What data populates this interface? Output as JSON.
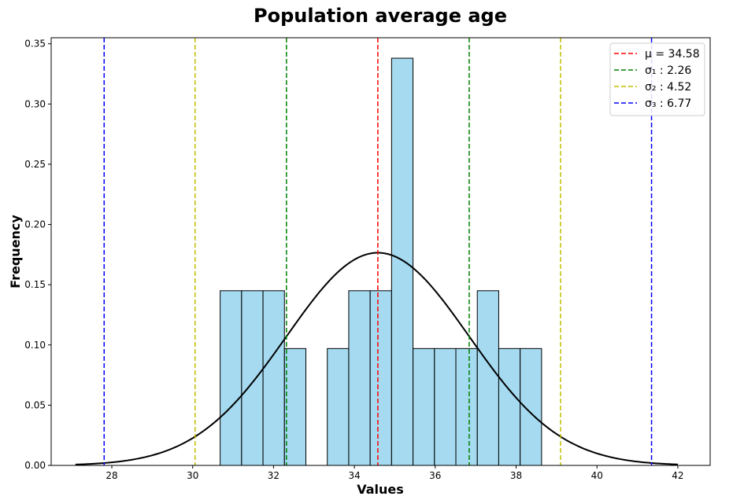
{
  "chart_data": {
    "type": "bar",
    "title": "Population average age",
    "xlabel": "Values",
    "ylabel": "Frequency",
    "xlim": [
      26.5,
      42.8
    ],
    "ylim": [
      0,
      0.355
    ],
    "x_ticks": [
      28,
      30,
      32,
      34,
      36,
      38,
      40,
      42
    ],
    "x_tick_labels": [
      "28",
      "30",
      "32",
      "34",
      "36",
      "38",
      "40",
      "42"
    ],
    "y_ticks": [
      0,
      0.05,
      0.1,
      0.15,
      0.2,
      0.25,
      0.3,
      0.35
    ],
    "y_tick_labels": [
      "0.00",
      "0.05",
      "0.10",
      "0.15",
      "0.20",
      "0.25",
      "0.30",
      "0.35"
    ],
    "grid": false,
    "legend_position": "top-right",
    "histogram": {
      "color": "#87ceeb",
      "edge_color": "#000000",
      "bins": [
        {
          "x0": 30.68,
          "x1": 31.21,
          "value": 0.145
        },
        {
          "x0": 31.21,
          "x1": 31.74,
          "value": 0.145
        },
        {
          "x0": 31.74,
          "x1": 32.27,
          "value": 0.145
        },
        {
          "x0": 32.27,
          "x1": 32.8,
          "value": 0.097
        },
        {
          "x0": 32.8,
          "x1": 33.33,
          "value": 0
        },
        {
          "x0": 33.33,
          "x1": 33.86,
          "value": 0.097
        },
        {
          "x0": 33.86,
          "x1": 34.39,
          "value": 0.145
        },
        {
          "x0": 34.39,
          "x1": 34.92,
          "value": 0.145
        },
        {
          "x0": 34.92,
          "x1": 35.45,
          "value": 0.338
        },
        {
          "x0": 35.45,
          "x1": 35.98,
          "value": 0.097
        },
        {
          "x0": 35.98,
          "x1": 36.51,
          "value": 0.097
        },
        {
          "x0": 36.51,
          "x1": 37.04,
          "value": 0.097
        },
        {
          "x0": 37.04,
          "x1": 37.57,
          "value": 0.145
        },
        {
          "x0": 37.57,
          "x1": 38.1,
          "value": 0.097
        },
        {
          "x0": 38.1,
          "x1": 38.63,
          "value": 0.097
        }
      ]
    },
    "density_curve": {
      "type": "normal",
      "mean": 34.58,
      "std": 2.26,
      "x_range": [
        27.1,
        42.0
      ],
      "color": "#000000"
    },
    "reference_lines": [
      {
        "label": "μ = 34.58",
        "x": [
          34.58
        ],
        "color": "#ff0000"
      },
      {
        "label": "σ₁ : 2.26",
        "x": [
          32.32,
          36.84
        ],
        "color": "#008000"
      },
      {
        "label": "σ₂ : 4.52",
        "x": [
          30.06,
          39.1
        ],
        "color": "#bfbf00"
      },
      {
        "label": "σ₃ : 6.77",
        "x": [
          27.81,
          41.35
        ],
        "color": "#0000ff"
      }
    ]
  }
}
